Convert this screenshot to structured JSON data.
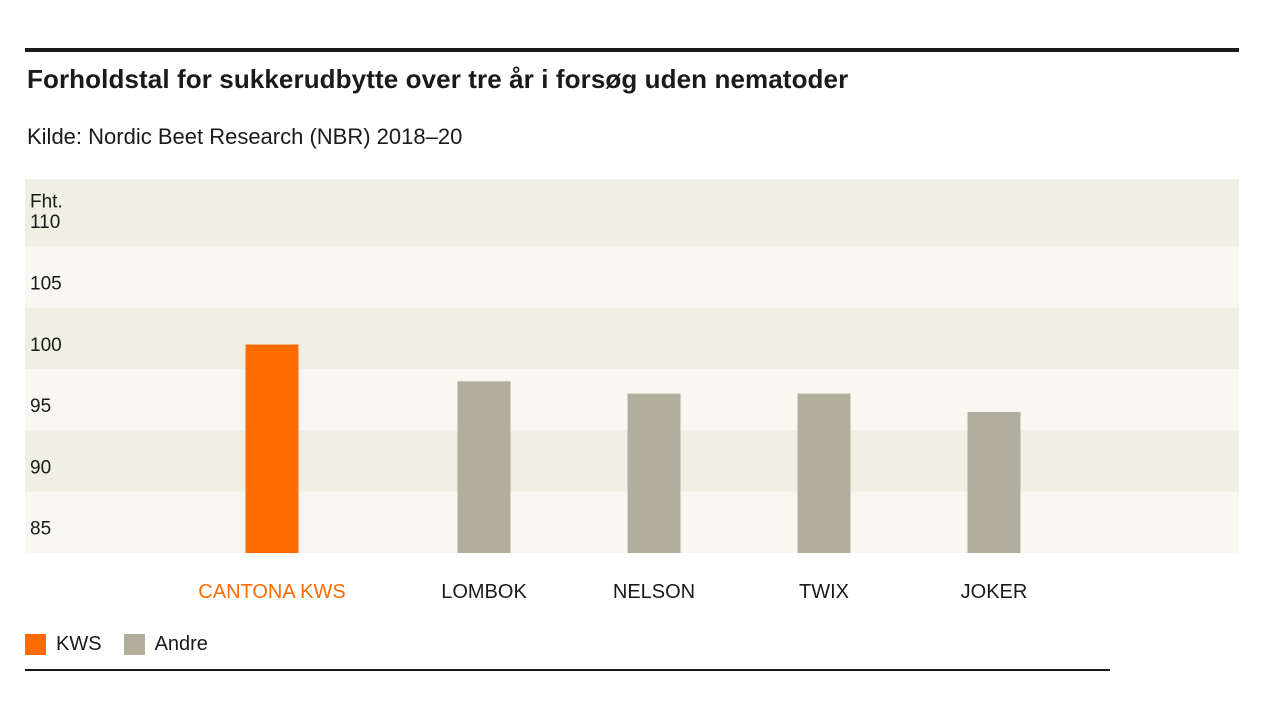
{
  "header": {
    "title": "Forholdstal for sukkerudbytte over tre år i forsøg uden nematoder",
    "subtitle": "Kilde: Nordic Beet Research (NBR) 2018–20"
  },
  "legend": {
    "items": [
      {
        "label": "KWS",
        "color": "#ff6b00"
      },
      {
        "label": "Andre",
        "color": "#b1ae9d"
      }
    ]
  },
  "colors": {
    "band_dark": "#f0efe4",
    "band_light": "#f8f7f1",
    "kws": "#ff6b00",
    "other": "#b1ae9d",
    "kws_label": "#ff6b00",
    "label": "#1a1a1a"
  },
  "chart_data": {
    "type": "bar",
    "categories": [
      "CANTONA KWS",
      "LOMBOK",
      "NELSON",
      "TWIX",
      "JOKER"
    ],
    "values": [
      101,
      98,
      97,
      97,
      95.5
    ],
    "groups": [
      "KWS",
      "Andre",
      "Andre",
      "Andre",
      "Andre"
    ],
    "ylabel": "Fht.",
    "yticks": [
      85,
      90,
      95,
      100,
      105,
      110
    ],
    "ylim": [
      84,
      114.5
    ],
    "grid": "alternating horizontal bands",
    "legend_position": "bottom-left"
  }
}
